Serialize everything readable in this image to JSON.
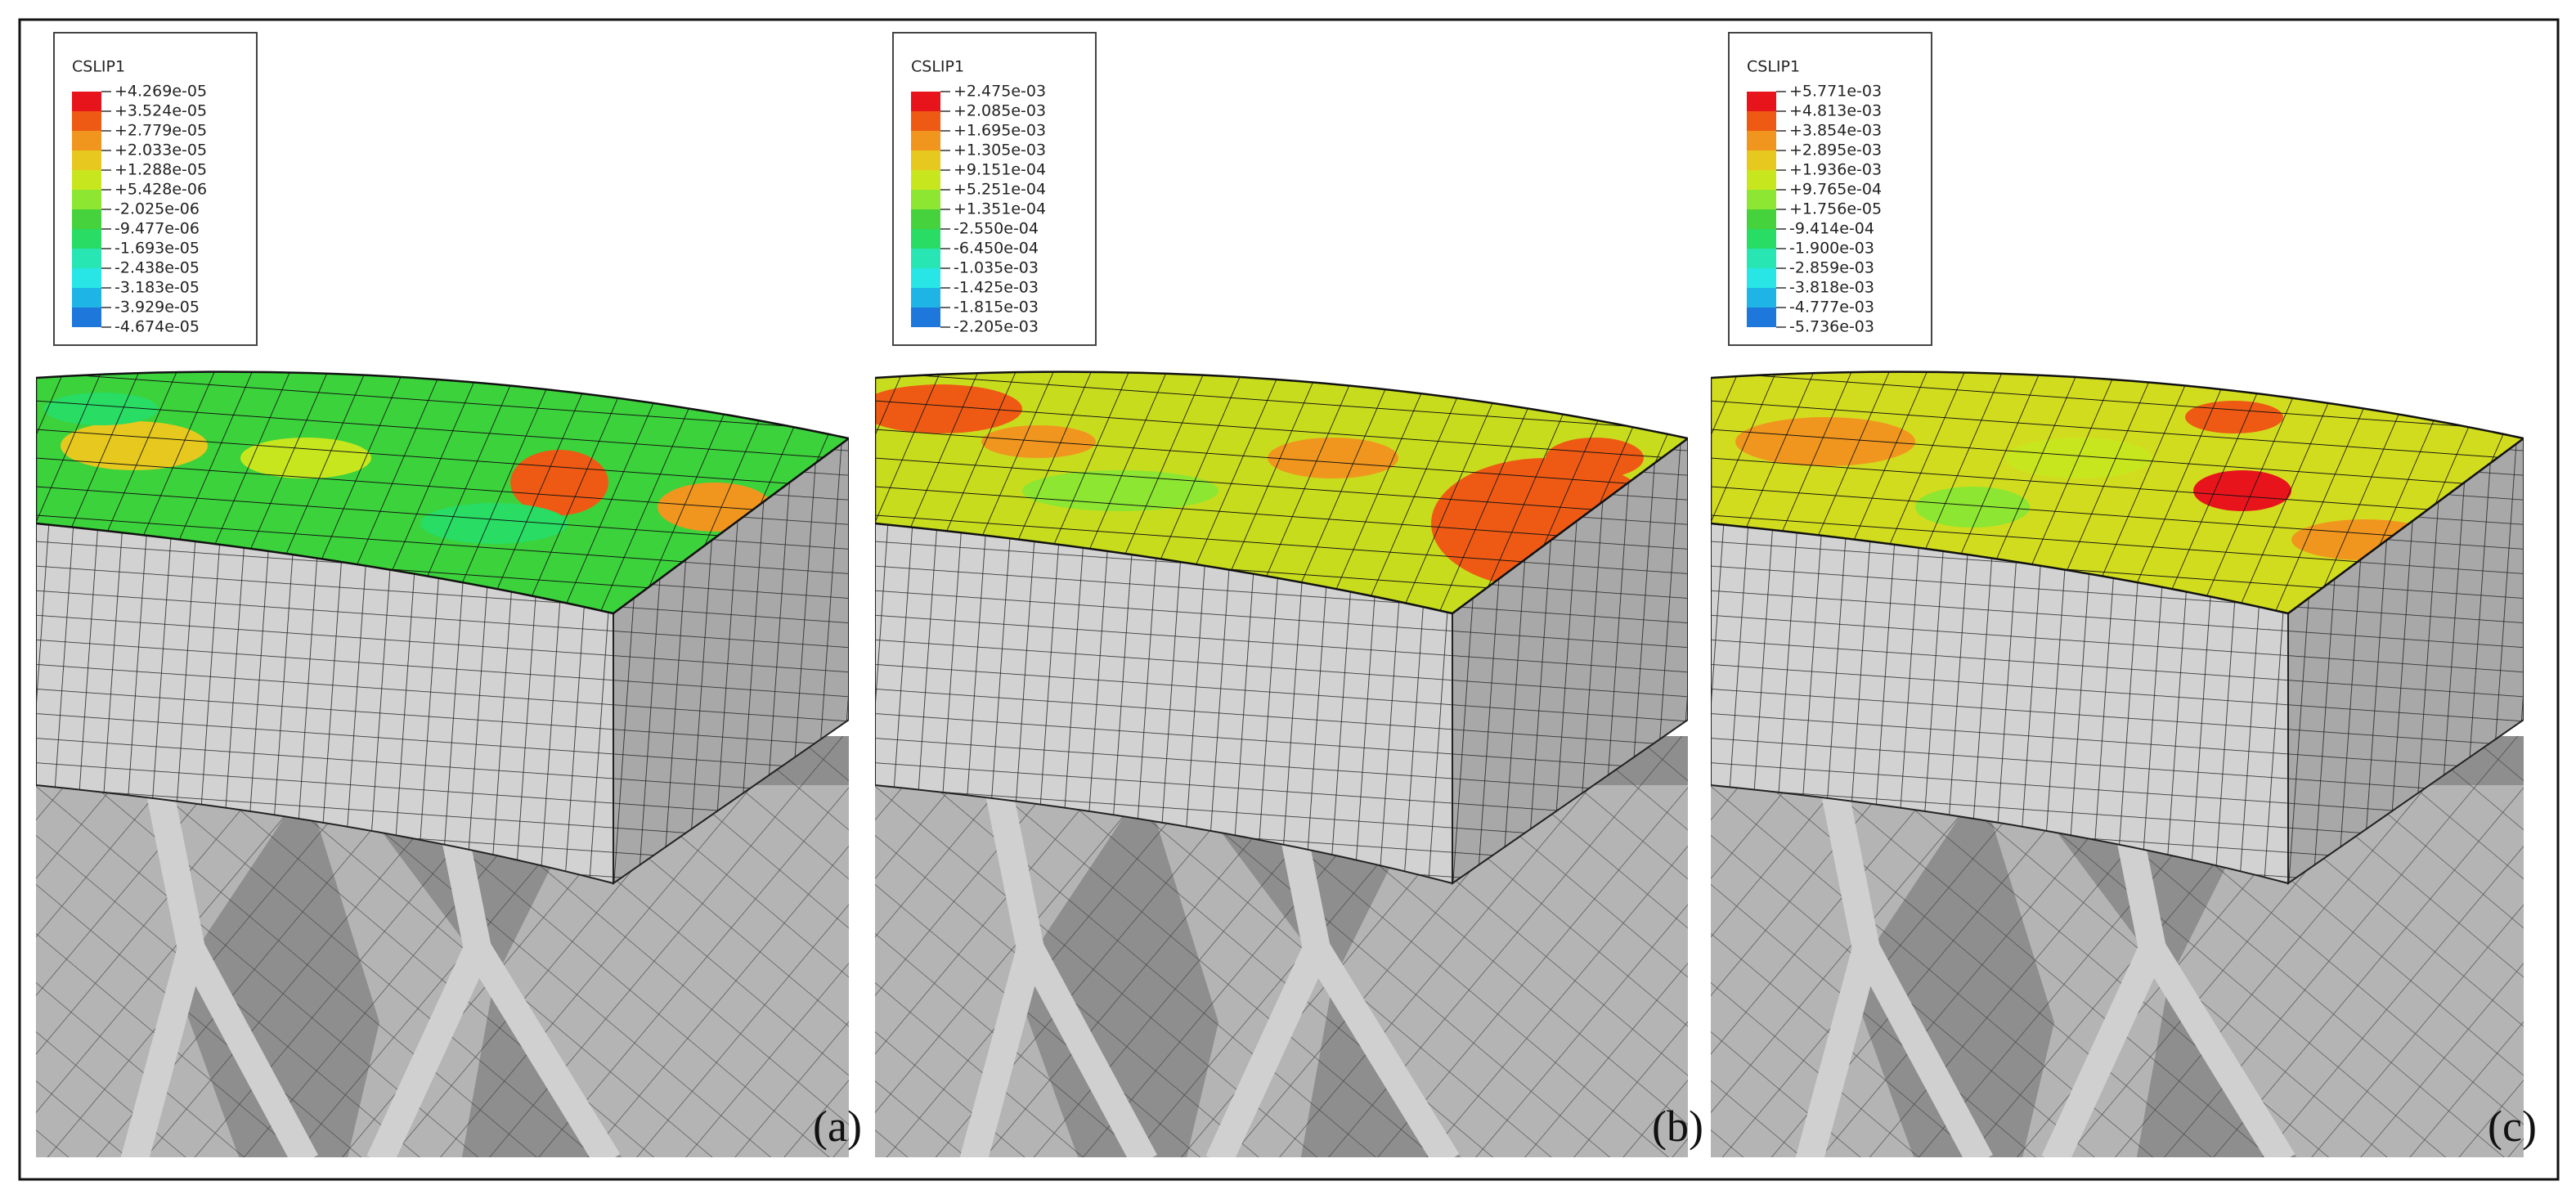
{
  "panels": [
    {
      "legend_title": "CSLIP1",
      "label": "(a)",
      "levels": [
        "+4.269e-05",
        "+3.524e-05",
        "+2.779e-05",
        "+2.033e-05",
        "+1.288e-05",
        "+5.428e-06",
        "-2.025e-06",
        "-9.477e-06",
        "-1.693e-05",
        "-2.438e-05",
        "-3.183e-05",
        "-3.929e-05",
        "-4.674e-05"
      ]
    },
    {
      "legend_title": "CSLIP1",
      "label": "(b)",
      "levels": [
        "+2.475e-03",
        "+2.085e-03",
        "+1.695e-03",
        "+1.305e-03",
        "+9.151e-04",
        "+5.251e-04",
        "+1.351e-04",
        "-2.550e-04",
        "-6.450e-04",
        "-1.035e-03",
        "-1.425e-03",
        "-1.815e-03",
        "-2.205e-03"
      ]
    },
    {
      "legend_title": "CSLIP1",
      "label": "(c)",
      "levels": [
        "+5.771e-03",
        "+4.813e-03",
        "+3.854e-03",
        "+2.895e-03",
        "+1.936e-03",
        "+9.765e-04",
        "+1.756e-05",
        "-9.414e-04",
        "-1.900e-03",
        "-2.859e-03",
        "-3.818e-03",
        "-4.777e-03",
        "-5.736e-03"
      ]
    }
  ],
  "legend_colors": [
    "#e8141c",
    "#ee5a14",
    "#f0961e",
    "#e6c81e",
    "#c8e61e",
    "#8ce632",
    "#46d23c",
    "#28dc64",
    "#28e6b4",
    "#28e6e6",
    "#1eb4e6",
    "#1e78dc",
    "#1446c8"
  ]
}
